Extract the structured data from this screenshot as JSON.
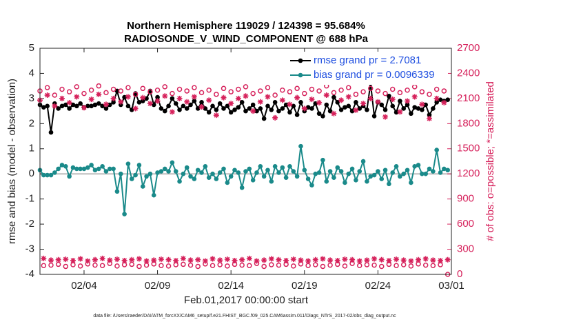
{
  "chart_data": {
    "type": "line",
    "title": "Northern Hemisphere 119029 / 124398 = 95.684%",
    "subtitle": "RADIOSONDE_V_WIND_COMPONENT @ 688 hPa",
    "xlabel": "Feb.01,2017 00:00:00 start",
    "ylabel": "rmse and bias (model - observation)",
    "y2label": "# of obs: o=possible; *=assimilated",
    "footnote": "data file: /Users/raeder/DAI/ATM_forcXX/CAM6_setup/f.e21.FHIST_BGC.f09_025.CAM6assim.011/Diags_NTrS_2017-02/obs_diag_output.nc",
    "xlim": [
      0,
      28
    ],
    "xticks": [
      {
        "value": 3,
        "label": "02/04"
      },
      {
        "value": 8,
        "label": "02/09"
      },
      {
        "value": 13,
        "label": "02/14"
      },
      {
        "value": 18,
        "label": "02/19"
      },
      {
        "value": 23,
        "label": "02/24"
      },
      {
        "value": 28,
        "label": "03/01"
      }
    ],
    "ylim": [
      -4,
      5
    ],
    "yticks": [
      -4,
      -3,
      -2,
      -1,
      0,
      1,
      2,
      3,
      4,
      5
    ],
    "y2lim": [
      0,
      2700
    ],
    "y2ticks": [
      0,
      300,
      600,
      900,
      1200,
      1500,
      1800,
      2100,
      2400,
      2700
    ],
    "y2color": "#d6215b",
    "legend": "upper right",
    "x": [
      0,
      0.25,
      0.5,
      0.75,
      1,
      1.25,
      1.5,
      1.75,
      2,
      2.25,
      2.5,
      2.75,
      3,
      3.25,
      3.5,
      3.75,
      4,
      4.25,
      4.5,
      4.75,
      5,
      5.25,
      5.5,
      5.75,
      6,
      6.25,
      6.5,
      6.75,
      7,
      7.25,
      7.5,
      7.75,
      8,
      8.25,
      8.5,
      8.75,
      9,
      9.25,
      9.5,
      9.75,
      10,
      10.25,
      10.5,
      10.75,
      11,
      11.25,
      11.5,
      11.75,
      12,
      12.25,
      12.5,
      12.75,
      13,
      13.25,
      13.5,
      13.75,
      14,
      14.25,
      14.5,
      14.75,
      15,
      15.25,
      15.5,
      15.75,
      16,
      16.25,
      16.5,
      16.75,
      17,
      17.25,
      17.5,
      17.75,
      18,
      18.25,
      18.5,
      18.75,
      19,
      19.25,
      19.5,
      19.75,
      20,
      20.25,
      20.5,
      20.75,
      21,
      21.25,
      21.5,
      21.75,
      22,
      22.25,
      22.5,
      22.75,
      23,
      23.25,
      23.5,
      23.75,
      24,
      24.25,
      24.5,
      24.75,
      25,
      25.25,
      25.5,
      25.75,
      26,
      26.25,
      26.5,
      26.75,
      27,
      27.25,
      27.5,
      27.75
    ],
    "series": [
      {
        "name": "rmse grand pr = 2.7081",
        "color": "#000000",
        "marker": "circle",
        "line": true,
        "values": [
          2.75,
          2.65,
          2.7,
          1.65,
          2.8,
          2.6,
          2.7,
          2.75,
          2.6,
          2.75,
          2.7,
          2.8,
          2.65,
          2.7,
          2.7,
          2.75,
          2.8,
          2.7,
          2.6,
          2.75,
          2.85,
          3.3,
          2.75,
          3.05,
          2.7,
          2.55,
          3.2,
          2.85,
          2.9,
          3.0,
          3.3,
          2.75,
          3.05,
          2.6,
          2.5,
          2.7,
          3.0,
          2.8,
          2.55,
          2.7,
          2.6,
          2.75,
          2.9,
          2.6,
          2.85,
          2.6,
          2.45,
          2.7,
          2.55,
          2.8,
          2.6,
          2.7,
          2.45,
          2.55,
          2.65,
          2.85,
          2.5,
          2.6,
          2.75,
          2.5,
          2.6,
          2.2,
          2.7,
          2.55,
          2.85,
          2.5,
          2.6,
          2.75,
          2.45,
          2.7,
          2.35,
          2.85,
          2.5,
          2.65,
          2.6,
          2.8,
          2.4,
          2.3,
          2.75,
          2.5,
          3.05,
          2.85,
          2.55,
          2.65,
          2.7,
          2.5,
          2.85,
          2.6,
          2.7,
          2.55,
          3.6,
          2.3,
          2.85,
          2.75,
          2.55,
          3.1,
          2.7,
          2.45,
          2.9,
          2.6,
          2.75,
          2.4,
          2.65,
          2.6,
          2.55,
          2.75,
          2.35,
          2.6,
          2.85,
          2.95,
          2.9,
          2.95
        ]
      },
      {
        "name": "bias grand pr = 0.0096339",
        "color": "#1a8a8a",
        "marker": "circle",
        "line": true,
        "values": [
          0.15,
          -0.05,
          -0.05,
          -0.05,
          0.05,
          0.2,
          0.35,
          0.3,
          -0.1,
          0.25,
          0.2,
          0.2,
          0.2,
          0.25,
          0.35,
          0.15,
          0.2,
          0.3,
          0.1,
          0.2,
          0.2,
          -0.7,
          0.0,
          -1.6,
          0.4,
          -0.2,
          -0.05,
          0.35,
          -0.5,
          -0.1,
          0.0,
          -0.85,
          0.05,
          0.1,
          0.2,
          0.1,
          0.45,
          0.1,
          -0.3,
          0.0,
          0.25,
          -0.1,
          -0.2,
          0.15,
          0.05,
          0.3,
          -0.15,
          0.0,
          -0.2,
          0.05,
          0.2,
          -0.35,
          -0.1,
          0.15,
          0.05,
          -0.55,
          0.1,
          0.2,
          -0.25,
          0.05,
          0.3,
          -0.1,
          0.15,
          -0.3,
          0.3,
          0.05,
          0.25,
          -0.15,
          0.3,
          0.1,
          -0.1,
          1.1,
          0.15,
          -0.2,
          -0.45,
          0.0,
          0.05,
          0.55,
          -0.3,
          0.1,
          -0.15,
          0.25,
          0.1,
          -0.35,
          0.0,
          0.2,
          -0.25,
          0.1,
          0.5,
          -0.3,
          -0.1,
          -0.05,
          0.1,
          -0.2,
          0.15,
          -0.4,
          0.05,
          0.3,
          -0.1,
          0.0,
          0.15,
          -0.35,
          0.3,
          0.35,
          0.0,
          0.0,
          0.2,
          0.1,
          0.95,
          0.05,
          0.2,
          0.15
        ]
      },
      {
        "color": "#d6215b",
        "marker": "open-circle",
        "line": false,
        "axis": "y2",
        "values": [
          2190,
          105,
          2230,
          110,
          2140,
          120,
          2210,
          95,
          2180,
          115,
          2240,
          100,
          2160,
          125,
          2200,
          110,
          2250,
          105,
          2170,
          130,
          2210,
          100,
          2190,
          115,
          2230,
          120,
          2150,
          95,
          2220,
          110,
          2180,
          125,
          2200,
          105,
          2240,
          100,
          2160,
          115,
          2210,
          120,
          2190,
          110,
          2230,
          95,
          2170,
          125,
          2200,
          105,
          2150,
          115,
          2220,
          100,
          2180,
          120,
          2210,
          110,
          2240,
          105,
          2160,
          130,
          2190,
          95,
          2230,
          115,
          2140,
          110,
          2200,
          120,
          2180,
          100,
          2220,
          125,
          2160,
          105,
          2210,
          115,
          2190,
          95,
          2250,
          110,
          2170,
          120,
          2200,
          100,
          2230,
          130,
          2150,
          105,
          2180,
          115,
          2220,
          110,
          2190,
          95,
          2160,
          120,
          2210,
          105,
          2170,
          115,
          2200,
          100,
          2240,
          125,
          2180,
          110,
          2150,
          105,
          2210,
          115,
          2190,
          0
        ]
      },
      {
        "color": "#d6215b",
        "marker": "asterisk",
        "line": false,
        "axis": "y2",
        "values": [
          2080,
          190,
          2140,
          170,
          2010,
          175,
          2100,
          180,
          2050,
          165,
          2120,
          185,
          1990,
          160,
          2090,
          175,
          2150,
          190,
          2030,
          170,
          2100,
          180,
          2060,
          165,
          2120,
          175,
          1980,
          185,
          2110,
          160,
          2040,
          170,
          2070,
          180,
          2130,
          175,
          1940,
          165,
          2100,
          190,
          2060,
          170,
          2120,
          175,
          2000,
          160,
          2080,
          185,
          1900,
          170,
          2110,
          180,
          2040,
          165,
          2100,
          175,
          2130,
          190,
          1950,
          160,
          2060,
          170,
          2120,
          185,
          1870,
          175,
          2080,
          165,
          2030,
          180,
          2110,
          170,
          1980,
          160,
          2090,
          175,
          2050,
          185,
          2140,
          170,
          1920,
          165,
          2080,
          180,
          2120,
          175,
          1960,
          160,
          2040,
          170,
          2100,
          185,
          2060,
          175,
          1880,
          165,
          2090,
          180,
          1940,
          170,
          2070,
          160,
          2120,
          175,
          2030,
          185,
          1860,
          170,
          2100,
          165,
          2050,
          175
        ]
      }
    ]
  }
}
